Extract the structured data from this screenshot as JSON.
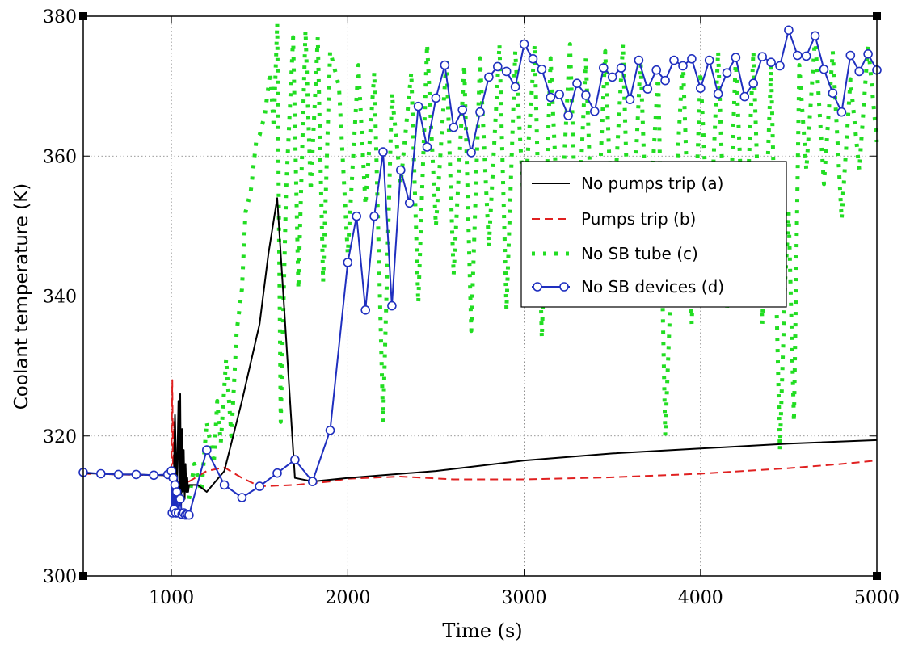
{
  "chart_data": {
    "type": "line",
    "xlabel": "Time (s)",
    "ylabel": "Coolant temperature (K)",
    "xlim": [
      500,
      5000
    ],
    "ylim": [
      300,
      380
    ],
    "xticks": [
      1000,
      2000,
      3000,
      4000,
      5000
    ],
    "yticks": [
      300,
      320,
      340,
      360,
      380
    ],
    "grid": true,
    "legend_position": "center-right",
    "series": [
      {
        "name": "No pumps trip (a)",
        "color": "#000000",
        "style": "solid",
        "x": [
          500,
          600,
          700,
          800,
          900,
          990,
          1000,
          1010,
          1020,
          1030,
          1040,
          1045,
          1050,
          1055,
          1060,
          1065,
          1070,
          1075,
          1080,
          1085,
          1090,
          1095,
          1100,
          1150,
          1200,
          1300,
          1400,
          1500,
          1550,
          1600,
          1650,
          1700,
          1800,
          2000,
          2500,
          3000,
          3500,
          4000,
          4500,
          5000
        ],
        "y": [
          314.7,
          314.6,
          314.5,
          314.5,
          314.4,
          314.4,
          315,
          309,
          323,
          312,
          325,
          311,
          326,
          310,
          321,
          312,
          318,
          311,
          316,
          312,
          314,
          312,
          313,
          313,
          312,
          315,
          325,
          336,
          346,
          354,
          334,
          314,
          313.5,
          314,
          315,
          316.5,
          317.5,
          318.2,
          318.9,
          319.4
        ]
      },
      {
        "name": "Pumps trip (b)",
        "color": "#e02020",
        "style": "dashed",
        "x": [
          500,
          700,
          900,
          990,
          1000,
          1005,
          1010,
          1015,
          1020,
          1030,
          1050,
          1100,
          1200,
          1300,
          1400,
          1500,
          1700,
          1900,
          2000,
          2300,
          2600,
          3000,
          3500,
          4000,
          4500,
          4800,
          5000
        ],
        "y": [
          314.6,
          314.5,
          314.4,
          314.4,
          315,
          328,
          312,
          322,
          311,
          314,
          313,
          313.5,
          315,
          315.5,
          314,
          312.8,
          313,
          313.5,
          313.9,
          314.2,
          313.8,
          313.8,
          314.1,
          314.6,
          315.4,
          316,
          316.5
        ]
      },
      {
        "name": "No SB tube (c)",
        "color": "#22dd22",
        "style": "dotted",
        "x": [
          1100,
          1130,
          1170,
          1200,
          1240,
          1260,
          1280,
          1310,
          1340,
          1370,
          1400,
          1420,
          1450,
          1480,
          1500,
          1530,
          1560,
          1580,
          1600,
          1620,
          1650,
          1690,
          1720,
          1760,
          1790,
          1830,
          1860,
          1900,
          1950,
          2000,
          2060,
          2100,
          2150,
          2200,
          2250,
          2300,
          2360,
          2400,
          2450,
          2500,
          2560,
          2600,
          2660,
          2700,
          2750,
          2800,
          2860,
          2900,
          2950,
          3000,
          3060,
          3100,
          3150,
          3200,
          3260,
          3300,
          3350,
          3400,
          3460,
          3500,
          3560,
          3600,
          3660,
          3700,
          3760,
          3800,
          3830,
          3860,
          3900,
          3950,
          4000,
          4050,
          4100,
          4150,
          4200,
          4250,
          4300,
          4350,
          4400,
          4450,
          4480,
          4500,
          4530,
          4560,
          4600,
          4650,
          4700,
          4750,
          4800,
          4850,
          4900,
          4950,
          5000
        ],
        "y": [
          311,
          316,
          312,
          322,
          316,
          325,
          319,
          331,
          320,
          335,
          341,
          352,
          355,
          362,
          363,
          366,
          372,
          364,
          379,
          322,
          355,
          377,
          341,
          378,
          355,
          377,
          342,
          375,
          370,
          346,
          373,
          353,
          372,
          322,
          369,
          356,
          372,
          339,
          376,
          350,
          374,
          343,
          373,
          335,
          374,
          347,
          376,
          338,
          375,
          352,
          376,
          334,
          374,
          346,
          376,
          345,
          374,
          339,
          375,
          348,
          376,
          341,
          374,
          345,
          372,
          320,
          340,
          355,
          374,
          336,
          372,
          345,
          375,
          338,
          374,
          344,
          375,
          336,
          373,
          318,
          342,
          352,
          322,
          373,
          358,
          377,
          356,
          375,
          351,
          371,
          358,
          376,
          362
        ]
      },
      {
        "name": "No SB devices (d)",
        "color": "#1f2fbf",
        "style": "solid-circle",
        "x": [
          500,
          600,
          700,
          800,
          900,
          980,
          1000,
          1005,
          1010,
          1015,
          1020,
          1025,
          1030,
          1040,
          1050,
          1060,
          1070,
          1080,
          1090,
          1100,
          1200,
          1300,
          1400,
          1500,
          1600,
          1700,
          1800,
          1900,
          2000,
          2050,
          2100,
          2150,
          2200,
          2250,
          2300,
          2350,
          2400,
          2450,
          2500,
          2550,
          2600,
          2650,
          2700,
          2750,
          2800,
          2850,
          2900,
          2950,
          3000,
          3050,
          3100,
          3150,
          3200,
          3250,
          3300,
          3350,
          3400,
          3450,
          3500,
          3550,
          3600,
          3650,
          3700,
          3750,
          3800,
          3850,
          3900,
          3950,
          4000,
          4050,
          4100,
          4150,
          4200,
          4250,
          4300,
          4350,
          4400,
          4450,
          4500,
          4550,
          4600,
          4650,
          4700,
          4750,
          4800,
          4850,
          4900,
          4950,
          5000
        ],
        "y": [
          314.8,
          314.6,
          314.5,
          314.5,
          314.4,
          314.5,
          315,
          309,
          314,
          309.5,
          313,
          309,
          312,
          309,
          311,
          308.8,
          309,
          308.7,
          308.8,
          308.7,
          318,
          313,
          311.2,
          312.8,
          314.7,
          316.6,
          313.5,
          320.8,
          344.8,
          351.4,
          338,
          351.4,
          360.6,
          338.6,
          358,
          353.3,
          367.1,
          361.3,
          368.3,
          373,
          364.1,
          366.6,
          360.5,
          366.3,
          371.3,
          372.8,
          372.1,
          369.9,
          376,
          373.9,
          372.4,
          368.4,
          368.8,
          365.8,
          370.4,
          368.7,
          366.4,
          372.6,
          371.3,
          372.6,
          368.1,
          373.7,
          369.6,
          372.3,
          370.8,
          373.7,
          372.9,
          373.9,
          369.7,
          373.7,
          368.9,
          371.9,
          374.1,
          368.5,
          370.4,
          374.2,
          373.4,
          372.9,
          378,
          374.4,
          374.3,
          377.2,
          372.4,
          369,
          366.3,
          374.4,
          372.1,
          374.6,
          372.3
        ]
      }
    ]
  }
}
